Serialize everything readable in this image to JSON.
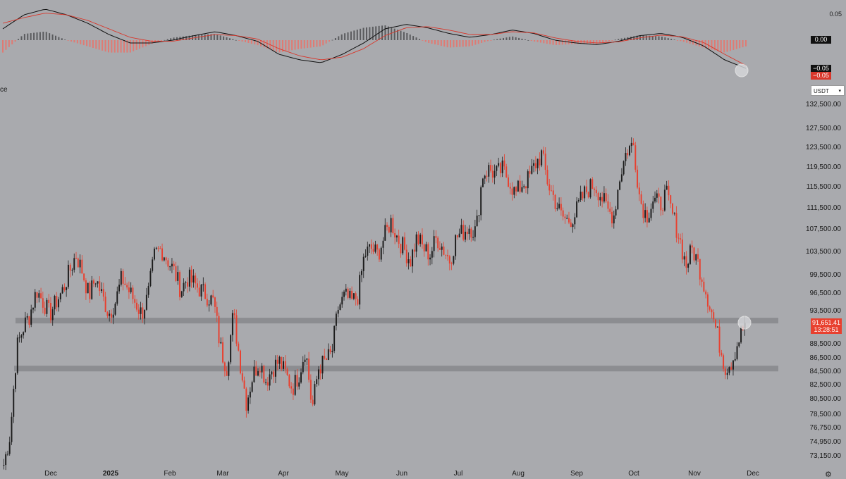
{
  "chart_data": [
    {
      "type": "line",
      "indicator": "MACD",
      "series": [],
      "ticks": [
        "0.05",
        "0.00"
      ],
      "last_values": [
        "−0.05",
        "−0.05"
      ],
      "macd_line": [
        0.02,
        0.045,
        0.055,
        0.045,
        0.03,
        0.01,
        -0.005,
        -0.005,
        0.0,
        0.008,
        0.015,
        0.008,
        -0.002,
        -0.025,
        -0.035,
        -0.04,
        -0.025,
        -0.005,
        0.02,
        0.028,
        0.022,
        0.012,
        0.005,
        0.01,
        0.018,
        0.012,
        0.0,
        -0.005,
        -0.008,
        -0.002,
        0.008,
        0.012,
        0.005,
        -0.01,
        -0.035,
        -0.05
      ],
      "signal_line": [
        0.03,
        0.04,
        0.048,
        0.045,
        0.035,
        0.02,
        0.005,
        -0.002,
        -0.002,
        0.004,
        0.01,
        0.008,
        0.002,
        -0.015,
        -0.028,
        -0.035,
        -0.03,
        -0.015,
        0.008,
        0.022,
        0.024,
        0.018,
        0.01,
        0.01,
        0.015,
        0.013,
        0.004,
        -0.002,
        -0.005,
        -0.003,
        0.004,
        0.009,
        0.006,
        -0.004,
        -0.025,
        -0.045
      ]
    },
    {
      "type": "candlestick",
      "pane_label": "ce",
      "currency": "USDT",
      "y_ticks": [
        "132,500.00",
        "127,500.00",
        "123,500.00",
        "119,500.00",
        "115,500.00",
        "111,500.00",
        "107,500.00",
        "103,500.00",
        "99,500.00",
        "96,500.00",
        "93,500.00",
        "88,500.00",
        "86,500.00",
        "84,500.00",
        "82,500.00",
        "80,500.00",
        "78,500.00",
        "76,750.00",
        "74,950.00",
        "73,150.00"
      ],
      "x_ticks": [
        "Dec",
        "2025",
        "Feb",
        "Mar",
        "Apr",
        "May",
        "Jun",
        "Jul",
        "Aug",
        "Sep",
        "Oct",
        "Nov",
        "Dec"
      ],
      "x_ticks_bold": [
        "2025"
      ],
      "last_price": "91,651.41",
      "countdown": "13:28:51",
      "levels": [
        92000,
        84900
      ],
      "closes": [
        72000,
        76000,
        88000,
        91000,
        93000,
        97000,
        95000,
        93000,
        95000,
        97000,
        100000,
        103000,
        100000,
        96000,
        99000,
        96000,
        93000,
        95000,
        99000,
        97000,
        95000,
        93000,
        96000,
        103000,
        104000,
        102000,
        100000,
        97000,
        99000,
        98000,
        97000,
        96000,
        95000,
        88000,
        85000,
        93000,
        86000,
        80000,
        84000,
        86000,
        83000,
        85000,
        86000,
        84000,
        82000,
        84000,
        88000,
        79000,
        85000,
        86000,
        87000,
        94000,
        96000,
        95000,
        96000,
        103000,
        104000,
        103000,
        106000,
        109000,
        106000,
        104000,
        102000,
        106000,
        104000,
        103000,
        106000,
        104000,
        102000,
        106000,
        107000,
        108000,
        107000,
        118000,
        119000,
        118000,
        119000,
        117000,
        114000,
        116000,
        117000,
        120000,
        122000,
        116000,
        113000,
        110000,
        109000,
        110000,
        113000,
        115000,
        116000,
        114000,
        111000,
        110000,
        118000,
        123000,
        124000,
        113000,
        110000,
        113000,
        112000,
        114000,
        110000,
        106000,
        101000,
        104000,
        101000,
        97000,
        93000,
        89000,
        85000,
        86000,
        89000,
        91650
      ],
      "candle_colors": {
        "up": "#1c1c1c",
        "down": "#e8402f"
      },
      "level_band_color": "#8c8d91"
    }
  ],
  "header": {}
}
